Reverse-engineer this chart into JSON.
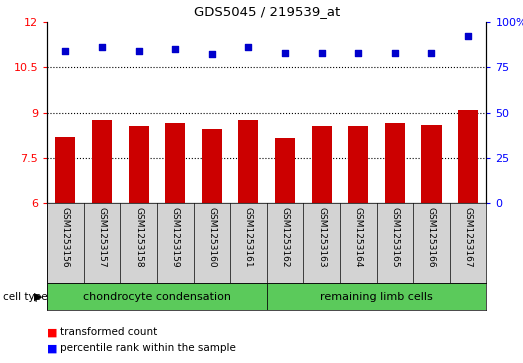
{
  "title": "GDS5045 / 219539_at",
  "samples": [
    "GSM1253156",
    "GSM1253157",
    "GSM1253158",
    "GSM1253159",
    "GSM1253160",
    "GSM1253161",
    "GSM1253162",
    "GSM1253163",
    "GSM1253164",
    "GSM1253165",
    "GSM1253166",
    "GSM1253167"
  ],
  "transformed_counts": [
    8.2,
    8.75,
    8.55,
    8.65,
    8.45,
    8.75,
    8.15,
    8.55,
    8.55,
    8.65,
    8.6,
    9.1
  ],
  "percentile_ranks": [
    84,
    86,
    84,
    85,
    82,
    86,
    83,
    83,
    83,
    83,
    83,
    92
  ],
  "ylim_left": [
    6,
    12
  ],
  "ylim_right": [
    0,
    100
  ],
  "yticks_left": [
    6,
    7.5,
    9,
    10.5,
    12
  ],
  "yticks_right": [
    0,
    25,
    50,
    75,
    100
  ],
  "ytick_labels_left": [
    "6",
    "7.5",
    "9",
    "10.5",
    "12"
  ],
  "ytick_labels_right": [
    "0",
    "25",
    "50",
    "75",
    "100%"
  ],
  "bar_color": "#cc0000",
  "dot_color": "#0000cc",
  "group1_label": "chondrocyte condensation",
  "group2_label": "remaining limb cells",
  "group1_indices": [
    0,
    1,
    2,
    3,
    4,
    5
  ],
  "group2_indices": [
    6,
    7,
    8,
    9,
    10,
    11
  ],
  "cell_type_label": "cell type",
  "legend_bar_label": "transformed count",
  "legend_dot_label": "percentile rank within the sample",
  "group_bg": "#5bca5b",
  "tick_area_bg": "#d3d3d3",
  "plot_bg": "#ffffff",
  "fig_bg": "#ffffff"
}
